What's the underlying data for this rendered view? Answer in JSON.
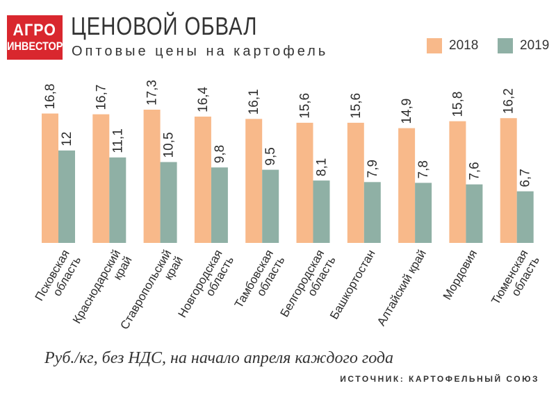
{
  "header": {
    "logo_line1": "АГРО",
    "logo_line2": "ИНВЕСТОР",
    "title": "ЦЕНОВОЙ ОБВАЛ",
    "subtitle": "Оптовые цены на картофель"
  },
  "footer": {
    "note": "Руб./кг, без НДС, на начало апреля каждого года",
    "source": "ИСТОЧНИК: КАРТОФЕЛЬНЫЙ СОЮЗ"
  },
  "colors": {
    "brand": "#d9272e",
    "series_2018": "#f8b98a",
    "series_2019": "#8fb0a5"
  },
  "chart_data": {
    "type": "bar",
    "title": "ЦЕНОВОЙ ОБВАЛ",
    "subtitle": "Оптовые цены на картофель",
    "unit": "Руб./кг, без НДС, на начало апреля каждого года",
    "legend_position": "top-right",
    "grid": false,
    "ylim": [
      0,
      17.3
    ],
    "categories": [
      [
        "Псковская",
        "область"
      ],
      [
        "Краснодарский",
        "край"
      ],
      [
        "Ставропольский",
        "край"
      ],
      [
        "Новгородская",
        "область"
      ],
      [
        "Тамбовская",
        "область"
      ],
      [
        "Белгородская",
        "область"
      ],
      [
        "Башкортостан"
      ],
      [
        "Алтайский край"
      ],
      [
        "Мордовия"
      ],
      [
        "Тюменская",
        "область"
      ]
    ],
    "series": [
      {
        "name": "2018",
        "values": [
          16.8,
          16.7,
          17.3,
          16.4,
          16.1,
          15.6,
          15.6,
          14.9,
          15.8,
          16.2
        ],
        "labels": [
          "16,8",
          "16,7",
          "17,3",
          "16,4",
          "16,1",
          "15,6",
          "15,6",
          "14,9",
          "15,8",
          "16,2"
        ]
      },
      {
        "name": "2019",
        "values": [
          12,
          11.1,
          10.5,
          9.8,
          9.5,
          8.1,
          7.9,
          7.8,
          7.6,
          6.7
        ],
        "labels": [
          "12",
          "11,1",
          "10,5",
          "9,8",
          "9,5",
          "8,1",
          "7,9",
          "7,8",
          "7,6",
          "6,7"
        ]
      }
    ]
  }
}
